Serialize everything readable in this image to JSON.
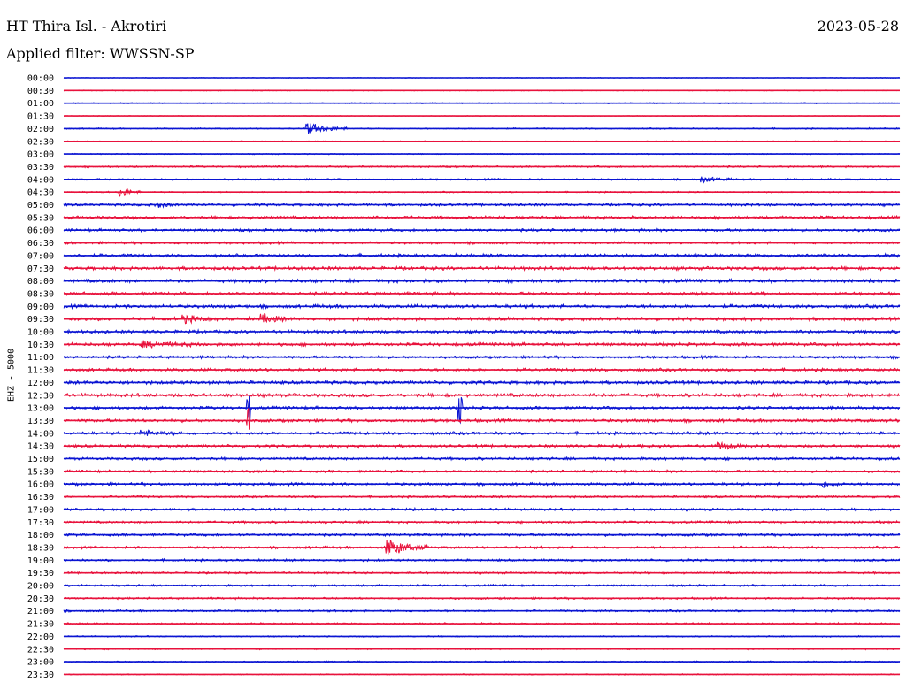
{
  "header": {
    "station": "HT Thira Isl. - Akrotiri",
    "date": "2023-05-28",
    "filter": "Applied filter: WWSSN-SP"
  },
  "channel_label": "EHZ - 5000",
  "colors": {
    "trace_a": "#0a14d2",
    "trace_b": "#e8123c",
    "text": "#000000"
  },
  "chart_data": {
    "type": "line",
    "ylabel": "EHZ - 5000",
    "row_labels": [
      "00:00",
      "00:30",
      "01:00",
      "01:30",
      "02:00",
      "02:30",
      "03:00",
      "03:30",
      "04:00",
      "04:30",
      "05:00",
      "05:30",
      "06:00",
      "06:30",
      "07:00",
      "07:30",
      "08:00",
      "08:30",
      "09:00",
      "09:30",
      "10:00",
      "10:30",
      "11:00",
      "11:30",
      "12:00",
      "12:30",
      "13:00",
      "13:30",
      "14:00",
      "14:30",
      "15:00",
      "15:30",
      "16:00",
      "16:30",
      "17:00",
      "17:30",
      "18:00",
      "18:30",
      "19:00",
      "19:30",
      "20:00",
      "20:30",
      "21:00",
      "21:30",
      "22:00",
      "22:30",
      "23:00",
      "23:30"
    ],
    "row_minutes": 30,
    "row_colors": [
      "trace_a",
      "trace_b"
    ],
    "noise_level": [
      0.3,
      0.4,
      0.5,
      0.3,
      0.6,
      0.4,
      0.5,
      0.8,
      0.8,
      0.6,
      1.2,
      1.3,
      1.2,
      1.1,
      1.4,
      1.5,
      1.5,
      1.4,
      1.5,
      1.5,
      1.4,
      1.4,
      1.2,
      1.3,
      1.5,
      1.5,
      1.3,
      1.4,
      1.3,
      1.2,
      1.2,
      1.1,
      1.2,
      1.0,
      1.1,
      1.0,
      1.2,
      1.1,
      1.0,
      0.9,
      0.9,
      0.9,
      0.9,
      0.8,
      0.6,
      0.6,
      0.7,
      0.5
    ],
    "events": [
      {
        "row": 4,
        "minute": 8.7,
        "amp": 7,
        "dur": 1.5
      },
      {
        "row": 9,
        "minute": 2.0,
        "amp": 5,
        "dur": 0.8
      },
      {
        "row": 10,
        "minute": 3.3,
        "amp": 3,
        "dur": 0.8
      },
      {
        "row": 19,
        "minute": 4.3,
        "amp": 4,
        "dur": 1.0
      },
      {
        "row": 19,
        "minute": 7.1,
        "amp": 5,
        "dur": 1.0
      },
      {
        "row": 21,
        "minute": 2.8,
        "amp": 3,
        "dur": 2.5
      },
      {
        "row": 26,
        "minute": 6.6,
        "amp": 16,
        "dur": 0.1
      },
      {
        "row": 26,
        "minute": 14.2,
        "amp": 16,
        "dur": 0.1
      },
      {
        "row": 27,
        "minute": 6.6,
        "amp": 16,
        "dur": 0.1
      },
      {
        "row": 28,
        "minute": 2.8,
        "amp": 3,
        "dur": 1.5
      },
      {
        "row": 37,
        "minute": 11.6,
        "amp": 10,
        "dur": 1.5
      },
      {
        "row": 32,
        "minute": 27.2,
        "amp": 4,
        "dur": 0.8
      },
      {
        "row": 29,
        "minute": 23.5,
        "amp": 4,
        "dur": 1.0
      },
      {
        "row": 8,
        "minute": 22.9,
        "amp": 3,
        "dur": 1.2
      }
    ]
  }
}
